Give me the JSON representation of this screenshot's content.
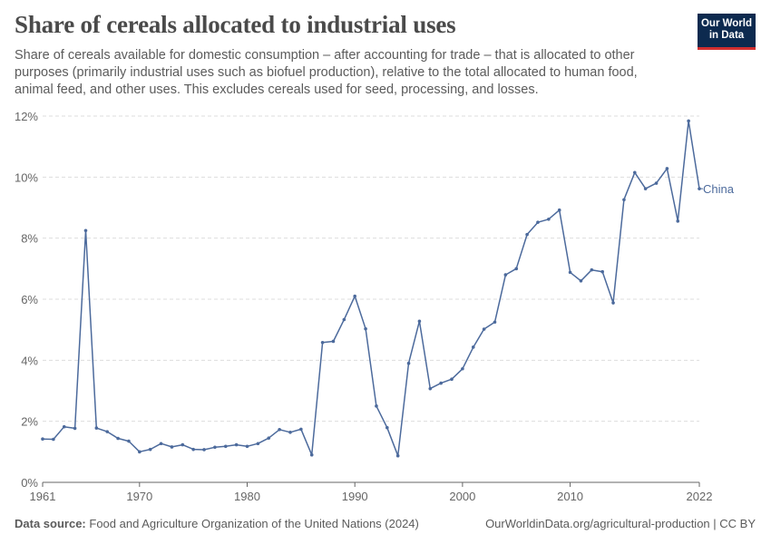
{
  "header": {
    "title": "Share of cereals allocated to industrial uses",
    "subtitle": "Share of cereals available for domestic consumption – after accounting for trade – that is allocated to other purposes (primarily industrial uses such as biofuel production), relative to the total allocated to human food, animal feed, and other uses. This excludes cereals used for seed, processing, and losses."
  },
  "logo": {
    "line1": "Our World",
    "line2": "in Data"
  },
  "footer": {
    "source_label": "Data source:",
    "source_text": "Food and Agriculture Organization of the United Nations (2024)",
    "right_text": "OurWorldinData.org/agricultural-production | CC BY"
  },
  "colors": {
    "series": "#4c6a9c",
    "grid": "#dddddd",
    "axis": "#666666"
  },
  "chart_data": {
    "type": "line",
    "title": "Share of cereals allocated to industrial uses",
    "xlabel": "",
    "ylabel": "",
    "xlim": [
      1961,
      2022
    ],
    "ylim": [
      0,
      12
    ],
    "y_ticks": [
      0,
      2,
      4,
      6,
      8,
      10,
      12
    ],
    "y_tick_labels": [
      "0%",
      "2%",
      "4%",
      "6%",
      "8%",
      "10%",
      "12%"
    ],
    "x_ticks": [
      1961,
      1970,
      1980,
      1990,
      2000,
      2010,
      2022
    ],
    "x_tick_labels": [
      "1961",
      "1970",
      "1980",
      "1990",
      "2000",
      "2010",
      "2022"
    ],
    "grid": "horizontal dashed",
    "legend": "inline label at line end",
    "series": [
      {
        "name": "China",
        "color": "#4c6a9c",
        "x": [
          1961,
          1962,
          1963,
          1964,
          1965,
          1966,
          1967,
          1968,
          1969,
          1970,
          1971,
          1972,
          1973,
          1974,
          1975,
          1976,
          1977,
          1978,
          1979,
          1980,
          1981,
          1982,
          1983,
          1984,
          1985,
          1986,
          1987,
          1988,
          1989,
          1990,
          1991,
          1992,
          1993,
          1994,
          1995,
          1996,
          1997,
          1998,
          1999,
          2000,
          2001,
          2002,
          2003,
          2004,
          2005,
          2006,
          2007,
          2008,
          2009,
          2010,
          2011,
          2012,
          2013,
          2014,
          2015,
          2016,
          2017,
          2018,
          2019,
          2020,
          2021,
          2022
        ],
        "values": [
          1.42,
          1.41,
          1.82,
          1.77,
          8.25,
          1.78,
          1.66,
          1.44,
          1.35,
          1.0,
          1.08,
          1.27,
          1.16,
          1.23,
          1.08,
          1.07,
          1.15,
          1.18,
          1.23,
          1.18,
          1.27,
          1.45,
          1.73,
          1.64,
          1.74,
          0.9,
          4.58,
          4.62,
          5.33,
          6.1,
          5.03,
          2.5,
          1.79,
          0.87,
          3.9,
          5.28,
          3.07,
          3.25,
          3.38,
          3.72,
          4.43,
          5.02,
          5.25,
          6.8,
          7.0,
          8.12,
          8.52,
          8.62,
          8.92,
          6.88,
          6.6,
          6.96,
          6.9,
          5.88,
          9.26,
          10.15,
          9.62,
          9.8,
          10.28,
          8.56,
          11.84,
          9.62
        ]
      }
    ]
  }
}
